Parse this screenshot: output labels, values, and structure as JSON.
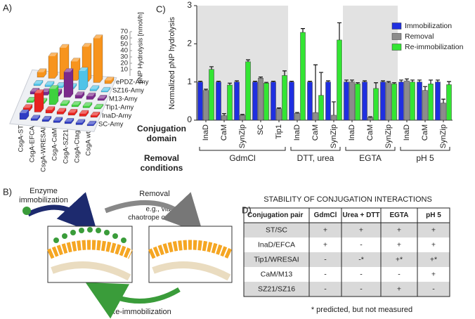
{
  "panel_labels": [
    "A)",
    "B)",
    "C)",
    "D)"
  ],
  "chart_data": [
    {
      "type": "bar3d",
      "ylabel": "pNP Hydrolysis [nmol/h]",
      "categories": [
        "CsgA-ST",
        "CsgA-EFCA",
        "CsgA-WRESAI",
        "CsgA-CaM",
        "CsgA-SZ21",
        "CsgA-Ctag",
        "CsgA wt"
      ],
      "category_colors": [
        "#2f3cc4",
        "#e8231f",
        "#2fc22f",
        "#7b2a8c",
        "#3fb8e0",
        "#f08c1a",
        "#111111"
      ],
      "series": [
        {
          "name": "ePDZ-Amy",
          "color": "#f7941d",
          "values": [
            8,
            35,
            50,
            30,
            55,
            70,
            5
          ]
        },
        {
          "name": "SZ16-Amy",
          "color": "#4fc3e8",
          "values": [
            3,
            3,
            3,
            3,
            30,
            3,
            2
          ]
        },
        {
          "name": "M13-Amy",
          "color": "#7b2a8c",
          "values": [
            4,
            5,
            6,
            40,
            5,
            5,
            3
          ]
        },
        {
          "name": "Tip1-Amy",
          "color": "#3ed13e",
          "values": [
            3,
            3,
            25,
            3,
            3,
            3,
            2
          ]
        },
        {
          "name": "InaD-Amy",
          "color": "#e8231f",
          "values": [
            5,
            30,
            5,
            4,
            4,
            4,
            3
          ]
        },
        {
          "name": "SC-Amy",
          "color": "#2f3cc4",
          "values": [
            10,
            3,
            3,
            3,
            3,
            3,
            2
          ]
        }
      ],
      "ylim": [
        0,
        70
      ],
      "yticks": [
        10,
        20,
        30,
        40,
        50,
        60,
        70
      ]
    },
    {
      "type": "bar",
      "ylabel": "Normalized pNP hydrolysis",
      "x_title": [
        "Conjugation",
        "domain"
      ],
      "group_title": [
        "Removal",
        "conditions"
      ],
      "groups": [
        {
          "label": "GdmCl",
          "shaded": true,
          "categories": [
            "InaD",
            "CaM",
            "SynZip",
            "SC",
            "Tip1"
          ]
        },
        {
          "label": "DTT, urea",
          "shaded": false,
          "categories": [
            "InaD",
            "CaM",
            "SynZip"
          ]
        },
        {
          "label": "EGTA",
          "shaded": true,
          "categories": [
            "InaD",
            "CaM",
            "SynZip"
          ]
        },
        {
          "label": "pH 5",
          "shaded": false,
          "categories": [
            "InaD",
            "CaM",
            "SynZip"
          ]
        }
      ],
      "series": [
        {
          "name": "Immobilization",
          "color": "#1f2fe0",
          "values": [
            1,
            1,
            1,
            1,
            1,
            1,
            1,
            1,
            1,
            1,
            1,
            1,
            1,
            1
          ],
          "errors": [
            0.02,
            0.02,
            0.03,
            0.02,
            0.02,
            0.02,
            0.02,
            0.03,
            0.05,
            0.03,
            0.03,
            0.05,
            0.05,
            0.05
          ]
        },
        {
          "name": "Removal",
          "color": "#8c8c8c",
          "values": [
            0.78,
            0.12,
            0.13,
            1.1,
            0.3,
            0.18,
            0.2,
            0.13,
            1,
            0.07,
            0.98,
            1.03,
            0.78,
            0.45
          ],
          "errors": [
            0.03,
            0.05,
            0.02,
            0.03,
            0.02,
            0.02,
            1.25,
            0.35,
            0.05,
            0.02,
            0.03,
            0.05,
            0.1,
            0.1
          ]
        },
        {
          "name": "Re-immobilization",
          "color": "#33e533",
          "values": [
            1.33,
            0.92,
            1.53,
            0.97,
            1.17,
            2.3,
            0.65,
            2.1,
            0.95,
            0.83,
            0.95,
            1,
            0.95,
            0.93
          ],
          "errors": [
            0.07,
            0.05,
            0.05,
            0.02,
            0.12,
            0.1,
            0.6,
            0.45,
            0.03,
            0.15,
            0.03,
            0.05,
            0.1,
            0.08
          ]
        }
      ],
      "ylim": [
        0,
        3
      ],
      "yticks": [
        0,
        1,
        2,
        3
      ],
      "legend": "upper right"
    }
  ],
  "diagram": {
    "immobilization": [
      "Enzyme",
      "immobilization"
    ],
    "removal": "Removal",
    "removal_note": [
      "e.g., via",
      "chaotrope or EGTA"
    ],
    "reimmobilization": "Re-immobilization"
  },
  "table": {
    "title": "STABILITY OF CONJUGATION INTERACTIONS",
    "header": [
      "Conjugation pair",
      "GdmCl",
      "Urea + DTT",
      "EGTA",
      "pH 5"
    ],
    "rows": [
      [
        "ST/SC",
        "+",
        "+",
        "+",
        "+"
      ],
      [
        "InaD/EFCA",
        "+",
        "-",
        "+",
        "+"
      ],
      [
        "Tip1/WRESAI",
        "-",
        "-*",
        "+*",
        "+*"
      ],
      [
        "CaM/M13",
        "-",
        "-",
        "-",
        "+"
      ],
      [
        "SZ21/SZ16",
        "-",
        "-",
        "+",
        "-"
      ]
    ],
    "footnote": "* predicted, but not measured"
  }
}
